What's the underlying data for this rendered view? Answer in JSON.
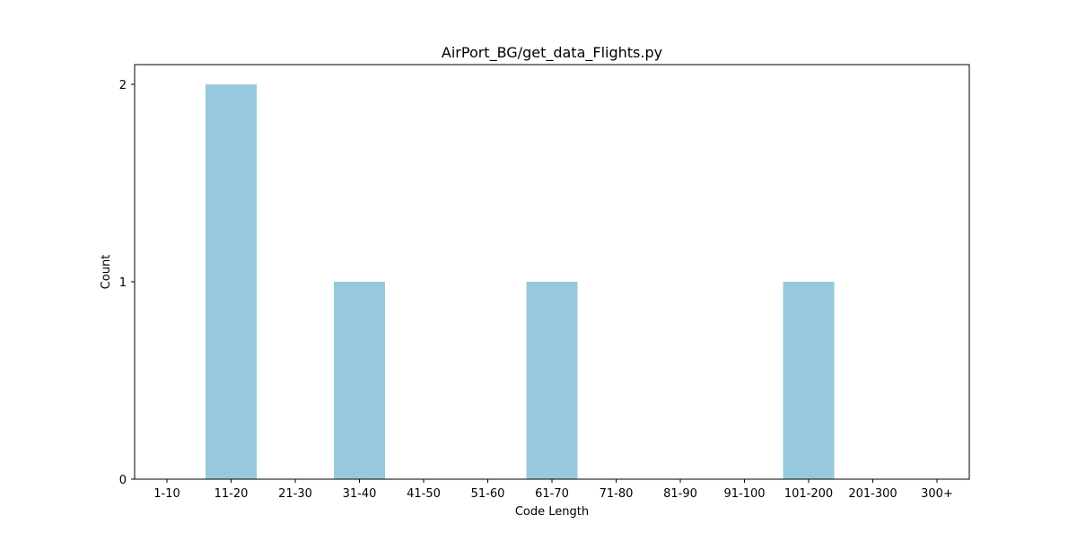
{
  "chart_data": {
    "type": "bar",
    "title": "AirPort_BG/get_data_Flights.py",
    "xlabel": "Code Length",
    "ylabel": "Count",
    "categories": [
      "1-10",
      "11-20",
      "21-30",
      "31-40",
      "41-50",
      "51-60",
      "61-70",
      "71-80",
      "81-90",
      "91-100",
      "101-200",
      "201-300",
      "300+"
    ],
    "values": [
      0,
      2,
      0,
      1,
      0,
      0,
      1,
      0,
      0,
      0,
      1,
      0,
      0
    ],
    "ylim": [
      0,
      2.1
    ],
    "yticks": [
      0,
      1,
      2
    ],
    "grid": false,
    "legend": "none",
    "bar_color": "#96c9dd"
  }
}
